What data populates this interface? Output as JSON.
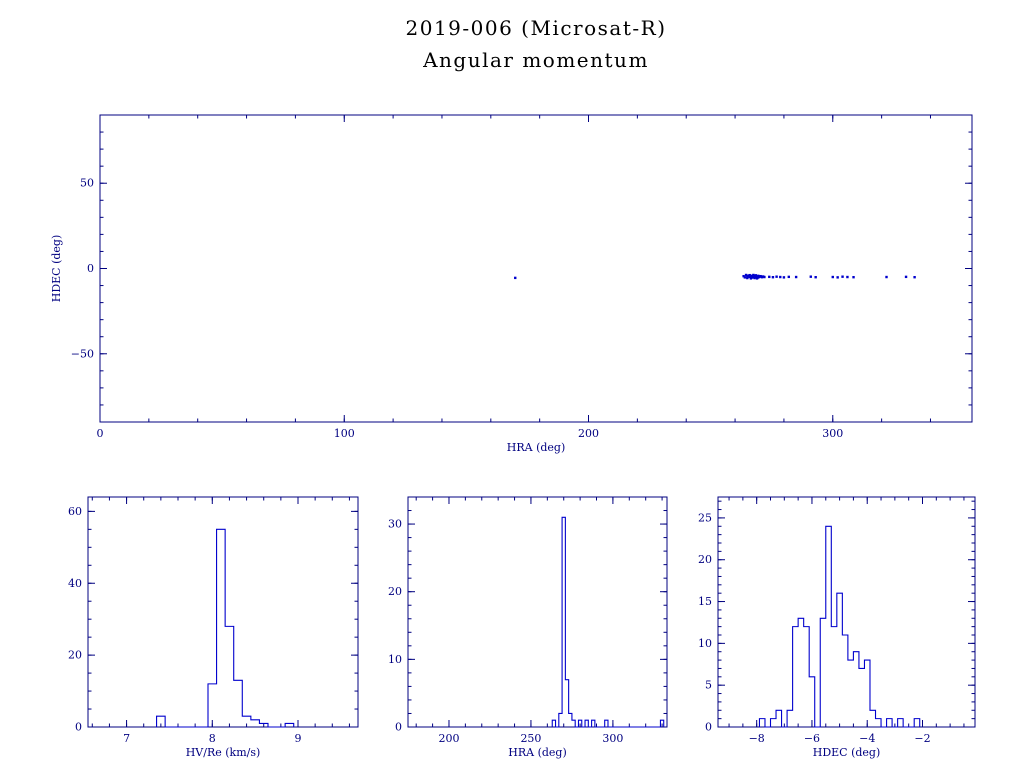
{
  "page": {
    "title": "2019-006 (Microsat-R)",
    "subtitle": "Angular momentum"
  },
  "colors": {
    "background": "#ffffff",
    "frame": "#000080",
    "label": "#000080",
    "data": "#0000cd",
    "title": "#000000"
  },
  "chart_data": [
    {
      "id": "scatter_hra_hdec",
      "type": "scatter",
      "xlabel": "HRA (deg)",
      "ylabel": "HDEC (deg)",
      "xlim": [
        0,
        357
      ],
      "ylim": [
        -90,
        90
      ],
      "xticks": [
        0,
        100,
        200,
        300
      ],
      "yticks": [
        -50,
        0,
        50
      ],
      "xminor": 20,
      "yminor": 10,
      "points": [
        [
          170.0,
          -5.5
        ],
        [
          263.5,
          -4.5
        ],
        [
          264,
          -5.2
        ],
        [
          264.5,
          -3.8
        ],
        [
          265,
          -4.6
        ],
        [
          265,
          -5.6
        ],
        [
          265.5,
          -4.2
        ],
        [
          266,
          -5.0
        ],
        [
          266,
          -3.9
        ],
        [
          266.5,
          -5.8
        ],
        [
          266.5,
          -4.7
        ],
        [
          267,
          -4.3
        ],
        [
          267,
          -5.3
        ],
        [
          267.5,
          -4.9
        ],
        [
          267.5,
          -3.8
        ],
        [
          268,
          -5.6
        ],
        [
          268,
          -4.4
        ],
        [
          268.5,
          -5.1
        ],
        [
          268.5,
          -4.0
        ],
        [
          269,
          -5.8
        ],
        [
          269,
          -4.7
        ],
        [
          269.5,
          -4.3
        ],
        [
          269.5,
          -5.3
        ],
        [
          270,
          -4.9
        ],
        [
          270.5,
          -4.5
        ],
        [
          271,
          -5.1
        ],
        [
          271.5,
          -4.7
        ],
        [
          272,
          -5.0
        ],
        [
          274,
          -4.9
        ],
        [
          275.5,
          -5.1
        ],
        [
          277,
          -4.8
        ],
        [
          278.5,
          -5.0
        ],
        [
          280,
          -5.2
        ],
        [
          282,
          -4.9
        ],
        [
          285,
          -5.0
        ],
        [
          291,
          -4.8
        ],
        [
          293,
          -5.1
        ],
        [
          300,
          -5.0
        ],
        [
          302,
          -5.2
        ],
        [
          304,
          -4.8
        ],
        [
          306,
          -5.0
        ],
        [
          308.5,
          -5.1
        ],
        [
          322,
          -5.0
        ],
        [
          330,
          -4.9
        ],
        [
          333.5,
          -5.1
        ]
      ]
    },
    {
      "id": "hist_hv_re",
      "type": "histogram",
      "xlabel": "HV/Re (km/s)",
      "ylabel": "",
      "xlim": [
        6.55,
        9.7
      ],
      "ylim": [
        0,
        64
      ],
      "xticks": [
        7,
        8,
        9
      ],
      "yticks": [
        0,
        20,
        40,
        60
      ],
      "xminor": 0.2,
      "yminor": 5,
      "bin_width": 0.1,
      "bins": [
        [
          7.35,
          3
        ],
        [
          7.95,
          12
        ],
        [
          8.05,
          55
        ],
        [
          8.15,
          28
        ],
        [
          8.25,
          13
        ],
        [
          8.35,
          3
        ],
        [
          8.45,
          2
        ],
        [
          8.55,
          1
        ],
        [
          8.85,
          1
        ]
      ]
    },
    {
      "id": "hist_hra",
      "type": "histogram",
      "xlabel": "HRA (deg)",
      "ylabel": "",
      "xlim": [
        175,
        333
      ],
      "ylim": [
        0,
        34
      ],
      "xticks": [
        200,
        250,
        300
      ],
      "yticks": [
        0,
        10,
        20,
        30
      ],
      "xminor": 10,
      "yminor": 2,
      "bin_width": 2,
      "bins": [
        [
          263,
          1
        ],
        [
          267,
          2
        ],
        [
          269,
          31
        ],
        [
          271,
          7
        ],
        [
          273,
          2
        ],
        [
          275,
          1
        ],
        [
          279,
          1
        ],
        [
          283,
          1
        ],
        [
          287,
          1
        ],
        [
          295,
          1
        ],
        [
          329,
          1
        ]
      ]
    },
    {
      "id": "hist_hdec",
      "type": "histogram",
      "xlabel": "HDEC (deg)",
      "ylabel": "",
      "xlim": [
        -9.4,
        -0.1
      ],
      "ylim": [
        0,
        27.5
      ],
      "xticks": [
        -8,
        -6,
        -4,
        -2
      ],
      "yticks": [
        0,
        5,
        10,
        15,
        20,
        25
      ],
      "xminor": 0.5,
      "yminor": 1,
      "bin_width": 0.2,
      "bins": [
        [
          -7.9,
          1
        ],
        [
          -7.5,
          1
        ],
        [
          -7.3,
          2
        ],
        [
          -6.9,
          2
        ],
        [
          -6.7,
          12
        ],
        [
          -6.5,
          13
        ],
        [
          -6.3,
          12
        ],
        [
          -6.1,
          6
        ],
        [
          -5.7,
          13
        ],
        [
          -5.5,
          24
        ],
        [
          -5.3,
          12
        ],
        [
          -5.1,
          16
        ],
        [
          -4.9,
          11
        ],
        [
          -4.7,
          8
        ],
        [
          -4.5,
          9
        ],
        [
          -4.3,
          7
        ],
        [
          -4.1,
          8
        ],
        [
          -3.9,
          2
        ],
        [
          -3.7,
          1
        ],
        [
          -3.3,
          1
        ],
        [
          -2.9,
          1
        ],
        [
          -2.3,
          1
        ]
      ]
    }
  ]
}
